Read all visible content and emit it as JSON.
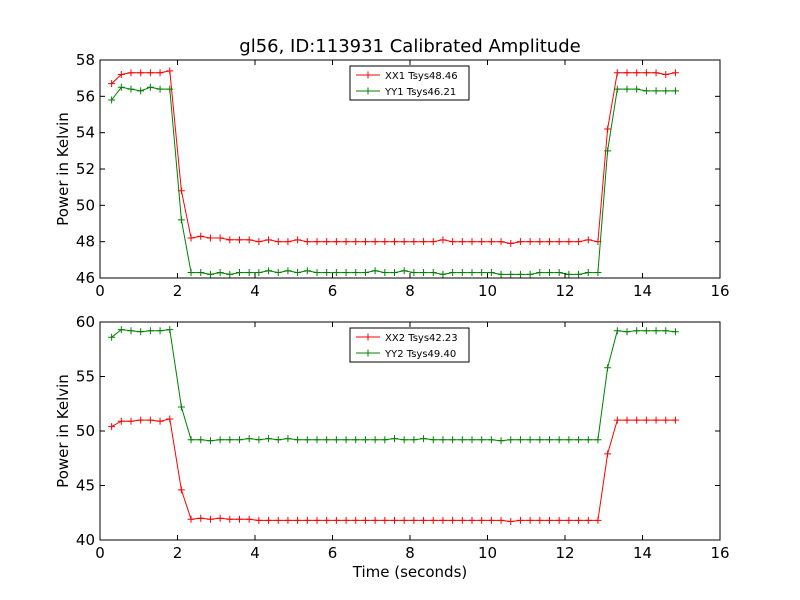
{
  "title": "gl56, ID:113931 Calibrated Amplitude",
  "chart_data": [
    {
      "type": "line",
      "ylabel": "Power in Kelvin",
      "xlabel": "",
      "xlim": [
        0,
        16
      ],
      "ylim": [
        46,
        58
      ],
      "xticks": [
        0,
        2,
        4,
        6,
        8,
        10,
        12,
        14,
        16
      ],
      "yticks": [
        46,
        48,
        50,
        52,
        54,
        56,
        58
      ],
      "legend_position": "top-center",
      "grid": false,
      "marker": "plus",
      "x": [
        0.3,
        0.55,
        0.8,
        1.05,
        1.3,
        1.55,
        1.8,
        2.1,
        2.35,
        2.6,
        2.85,
        3.1,
        3.35,
        3.6,
        3.85,
        4.1,
        4.35,
        4.6,
        4.85,
        5.1,
        5.35,
        5.6,
        5.85,
        6.1,
        6.35,
        6.6,
        6.85,
        7.1,
        7.35,
        7.6,
        7.85,
        8.1,
        8.35,
        8.6,
        8.85,
        9.1,
        9.35,
        9.6,
        9.85,
        10.1,
        10.35,
        10.6,
        10.85,
        11.1,
        11.35,
        11.6,
        11.85,
        12.1,
        12.35,
        12.6,
        12.85,
        13.1,
        13.35,
        13.6,
        13.85,
        14.1,
        14.35,
        14.6,
        14.85
      ],
      "series": [
        {
          "name": "XX1 Tsys48.46",
          "color": "#ff0000",
          "values": [
            56.7,
            57.2,
            57.3,
            57.3,
            57.3,
            57.3,
            57.4,
            50.8,
            48.2,
            48.3,
            48.2,
            48.2,
            48.1,
            48.1,
            48.1,
            48.0,
            48.1,
            48.0,
            48.0,
            48.1,
            48.0,
            48.0,
            48.0,
            48.0,
            48.0,
            48.0,
            48.0,
            48.0,
            48.0,
            48.0,
            48.0,
            48.0,
            48.0,
            48.0,
            48.1,
            48.0,
            48.0,
            48.0,
            48.0,
            48.0,
            48.0,
            47.9,
            48.0,
            48.0,
            48.0,
            48.0,
            48.0,
            48.0,
            48.0,
            48.1,
            48.0,
            54.2,
            57.3,
            57.3,
            57.3,
            57.3,
            57.3,
            57.2,
            57.3
          ]
        },
        {
          "name": "YY1 Tsys46.21",
          "color": "#008000",
          "values": [
            55.8,
            56.5,
            56.4,
            56.3,
            56.5,
            56.4,
            56.4,
            49.2,
            46.3,
            46.3,
            46.2,
            46.3,
            46.2,
            46.3,
            46.3,
            46.3,
            46.4,
            46.3,
            46.4,
            46.3,
            46.4,
            46.3,
            46.3,
            46.3,
            46.3,
            46.3,
            46.3,
            46.4,
            46.3,
            46.3,
            46.4,
            46.3,
            46.3,
            46.3,
            46.2,
            46.3,
            46.3,
            46.3,
            46.3,
            46.3,
            46.2,
            46.2,
            46.2,
            46.2,
            46.3,
            46.3,
            46.3,
            46.2,
            46.2,
            46.3,
            46.3,
            53.0,
            56.4,
            56.4,
            56.4,
            56.3,
            56.3,
            56.3,
            56.3
          ]
        }
      ]
    },
    {
      "type": "line",
      "ylabel": "Power in Kelvin",
      "xlabel": "Time (seconds)",
      "xlim": [
        0,
        16
      ],
      "ylim": [
        40,
        60
      ],
      "xticks": [
        0,
        2,
        4,
        6,
        8,
        10,
        12,
        14,
        16
      ],
      "yticks": [
        40,
        45,
        50,
        55,
        60
      ],
      "legend_position": "top-center",
      "grid": false,
      "marker": "plus",
      "x": [
        0.3,
        0.55,
        0.8,
        1.05,
        1.3,
        1.55,
        1.8,
        2.1,
        2.35,
        2.6,
        2.85,
        3.1,
        3.35,
        3.6,
        3.85,
        4.1,
        4.35,
        4.6,
        4.85,
        5.1,
        5.35,
        5.6,
        5.85,
        6.1,
        6.35,
        6.6,
        6.85,
        7.1,
        7.35,
        7.6,
        7.85,
        8.1,
        8.35,
        8.6,
        8.85,
        9.1,
        9.35,
        9.6,
        9.85,
        10.1,
        10.35,
        10.6,
        10.85,
        11.1,
        11.35,
        11.6,
        11.85,
        12.1,
        12.35,
        12.6,
        12.85,
        13.1,
        13.35,
        13.6,
        13.85,
        14.1,
        14.35,
        14.6,
        14.85
      ],
      "series": [
        {
          "name": "XX2 Tsys42.23",
          "color": "#ff0000",
          "values": [
            50.4,
            50.9,
            50.9,
            51.0,
            51.0,
            50.9,
            51.1,
            44.6,
            41.9,
            42.0,
            41.9,
            42.0,
            41.9,
            41.9,
            41.9,
            41.8,
            41.8,
            41.8,
            41.8,
            41.8,
            41.8,
            41.8,
            41.8,
            41.8,
            41.8,
            41.8,
            41.8,
            41.8,
            41.8,
            41.8,
            41.8,
            41.8,
            41.8,
            41.8,
            41.8,
            41.8,
            41.8,
            41.8,
            41.8,
            41.8,
            41.8,
            41.7,
            41.8,
            41.8,
            41.8,
            41.8,
            41.8,
            41.8,
            41.8,
            41.8,
            41.8,
            47.9,
            51.0,
            51.0,
            51.0,
            51.0,
            51.0,
            51.0,
            51.0
          ]
        },
        {
          "name": "YY2 Tsys49.40",
          "color": "#008000",
          "values": [
            58.6,
            59.3,
            59.2,
            59.1,
            59.2,
            59.2,
            59.3,
            52.2,
            49.2,
            49.2,
            49.1,
            49.2,
            49.2,
            49.2,
            49.3,
            49.2,
            49.3,
            49.2,
            49.3,
            49.2,
            49.2,
            49.2,
            49.2,
            49.2,
            49.2,
            49.2,
            49.2,
            49.2,
            49.2,
            49.3,
            49.2,
            49.2,
            49.3,
            49.2,
            49.2,
            49.2,
            49.2,
            49.2,
            49.2,
            49.2,
            49.1,
            49.2,
            49.2,
            49.2,
            49.2,
            49.2,
            49.2,
            49.2,
            49.2,
            49.2,
            49.2,
            55.8,
            59.2,
            59.1,
            59.2,
            59.2,
            59.2,
            59.2,
            59.1
          ]
        }
      ]
    }
  ]
}
